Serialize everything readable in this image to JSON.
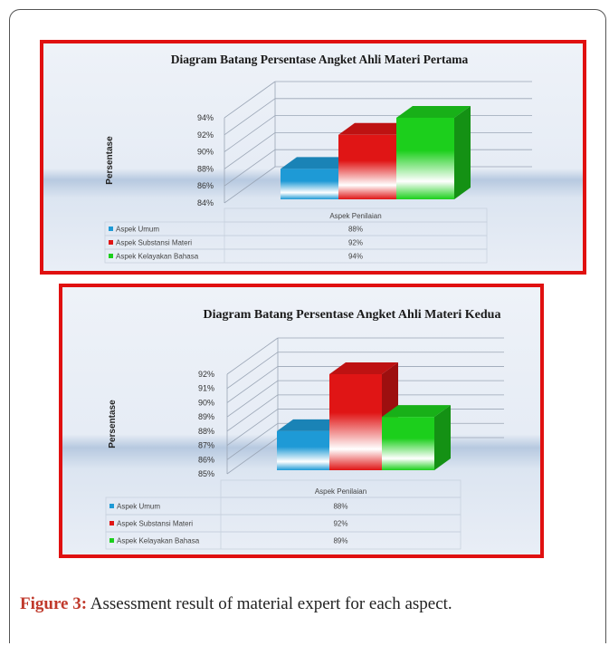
{
  "caption": {
    "label": "Figure 3:",
    "text": " Assessment result of material expert for each aspect."
  },
  "chart_data": [
    {
      "type": "bar",
      "title": "Diagram Batang  Persentase Angket Ahli Materi Pertama",
      "ylabel": "Persentase",
      "xlabel": "Aspek Penilaian",
      "yticks": [
        "84%",
        "86%",
        "88%",
        "90%",
        "92%",
        "94%"
      ],
      "ylim": [
        84,
        94
      ],
      "categories": [
        "Aspek Penilaian"
      ],
      "series": [
        {
          "name": "Aspek Umum",
          "values": [
            88
          ],
          "label": "88%",
          "color": "#1e9ad6"
        },
        {
          "name": "Aspek Substansi Materi",
          "values": [
            92
          ],
          "label": "92%",
          "color": "#e01515"
        },
        {
          "name": "Aspek Kelayakan Bahasa",
          "values": [
            94
          ],
          "label": "94%",
          "color": "#1ccf1c"
        }
      ],
      "legend": "table-bottom",
      "grid": true
    },
    {
      "type": "bar",
      "title": "Diagram Batang  Persentase Angket Ahli Materi Kedua",
      "ylabel": "Persentase",
      "xlabel": "Aspek Penilaian",
      "yticks": [
        "85%",
        "86%",
        "87%",
        "88%",
        "89%",
        "90%",
        "91%",
        "92%"
      ],
      "ylim": [
        85,
        92
      ],
      "categories": [
        "Aspek Penilaian"
      ],
      "series": [
        {
          "name": "Aspek Umum",
          "values": [
            88
          ],
          "label": "88%",
          "color": "#1e9ad6"
        },
        {
          "name": "Aspek Substansi Materi",
          "values": [
            92
          ],
          "label": "92%",
          "color": "#e01515"
        },
        {
          "name": "Aspek Kelayakan Bahasa",
          "values": [
            89
          ],
          "label": "89%",
          "color": "#1ccf1c"
        }
      ],
      "legend": "table-bottom",
      "grid": true
    }
  ]
}
